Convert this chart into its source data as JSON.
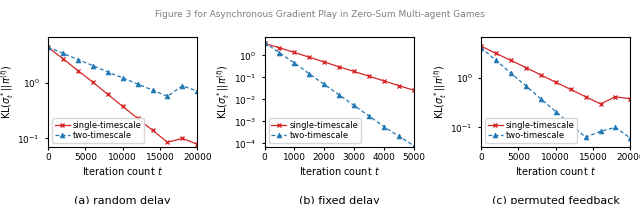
{
  "panels": [
    {
      "subtitle": "(a) random delay",
      "xlabel": "Iteration count $t$",
      "ylabel": "KL$(\\sigma_t^*||\\pi^{(t)})$",
      "xlim": [
        0,
        20000
      ],
      "ylim": [
        0.07,
        7.0
      ],
      "xticks": [
        0,
        5000,
        10000,
        15000,
        20000
      ],
      "single_x": [
        0,
        2000,
        4000,
        6000,
        8000,
        10000,
        12000,
        14000,
        16000,
        18000,
        20000
      ],
      "single_y": [
        4.5,
        2.8,
        1.7,
        1.05,
        0.63,
        0.38,
        0.23,
        0.14,
        0.085,
        0.1,
        0.078
      ],
      "two_x": [
        0,
        2000,
        4000,
        6000,
        8000,
        10000,
        12000,
        14000,
        16000,
        18000,
        20000
      ],
      "two_y": [
        4.5,
        3.5,
        2.7,
        2.1,
        1.6,
        1.25,
        0.97,
        0.75,
        0.58,
        0.9,
        0.72
      ],
      "yticks": [
        0.1,
        1.0
      ],
      "ytick_labels": [
        "$10^{-1}$",
        "$10^{0}$"
      ]
    },
    {
      "subtitle": "(b) fixed delay",
      "xlabel": "Iteration count $t$",
      "ylabel": "KL$(\\sigma_t^*||\\pi^{(t)})$",
      "xlim": [
        0,
        5000
      ],
      "ylim": [
        7e-05,
        7.0
      ],
      "xticks": [
        0,
        1000,
        2000,
        3000,
        4000,
        5000
      ],
      "single_x": [
        0,
        500,
        1000,
        1500,
        2000,
        2500,
        3000,
        3500,
        4000,
        4500,
        5000
      ],
      "single_y": [
        3.5,
        2.2,
        1.35,
        0.82,
        0.5,
        0.3,
        0.185,
        0.113,
        0.069,
        0.042,
        0.026
      ],
      "two_x": [
        0,
        500,
        1000,
        1500,
        2000,
        2500,
        3000,
        3500,
        4000,
        4500,
        5000
      ],
      "two_y": [
        3.8,
        1.3,
        0.45,
        0.145,
        0.048,
        0.016,
        0.0053,
        0.00175,
        0.00058,
        0.00021,
        8e-05
      ],
      "yticks": [
        0.0001,
        0.001,
        0.01,
        0.1,
        1.0
      ],
      "ytick_labels": [
        "$10^{-4}$",
        "$10^{-3}$",
        "$10^{-2}$",
        "$10^{-1}$",
        "$10^{0}$"
      ]
    },
    {
      "subtitle": "(c) permuted feedback",
      "xlabel": "Iteration count $t$",
      "ylabel": "KL$(\\sigma_t^*||\\pi^{(t)})$",
      "xlim": [
        0,
        20000
      ],
      "ylim": [
        0.04,
        7.0
      ],
      "xticks": [
        0,
        5000,
        10000,
        15000,
        20000
      ],
      "single_x": [
        0,
        2000,
        4000,
        6000,
        8000,
        10000,
        12000,
        14000,
        16000,
        18000,
        20000
      ],
      "single_y": [
        4.5,
        3.2,
        2.3,
        1.65,
        1.17,
        0.83,
        0.59,
        0.42,
        0.3,
        0.42,
        0.38
      ],
      "two_x": [
        0,
        2000,
        4000,
        6000,
        8000,
        10000,
        12000,
        14000,
        16000,
        18000,
        20000
      ],
      "two_y": [
        4.2,
        2.3,
        1.27,
        0.7,
        0.38,
        0.21,
        0.115,
        0.063,
        0.083,
        0.1,
        0.06
      ],
      "yticks": [
        0.1,
        1.0
      ],
      "ytick_labels": [
        "$10^{-1}$",
        "$10^{0}$"
      ]
    }
  ],
  "fig_title": "Figure 3",
  "red_color": "#d62728",
  "blue_color": "#1f77b4",
  "legend_labels": [
    "single-timescale",
    "two-timescale"
  ],
  "title_fontsize": 8,
  "label_fontsize": 7,
  "tick_fontsize": 6.5,
  "legend_fontsize": 6,
  "subtitle_fontsize": 8
}
